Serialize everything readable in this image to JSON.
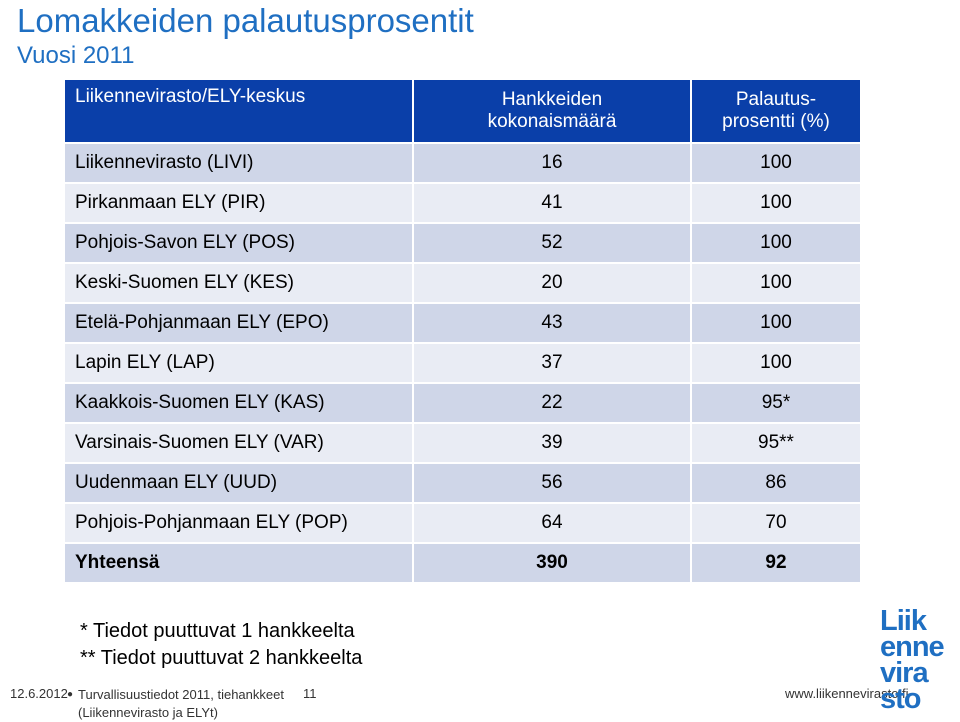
{
  "title": "Lomakkeiden palautusprosentit",
  "subtitle": "Vuosi 2011",
  "table": {
    "headers": {
      "col1": "Liikennevirasto/ELY-keskus",
      "col2_line1": "Hankkeiden",
      "col2_line2": "kokonaismäärä",
      "col3_line1": "Palautus-",
      "col3_line2": "prosentti (%)"
    },
    "rows": [
      {
        "name": "Liikennevirasto (LIVI)",
        "count": "16",
        "pct": "100"
      },
      {
        "name": "Pirkanmaan ELY (PIR)",
        "count": "41",
        "pct": "100"
      },
      {
        "name": "Pohjois-Savon ELY (POS)",
        "count": "52",
        "pct": "100"
      },
      {
        "name": "Keski-Suomen ELY (KES)",
        "count": "20",
        "pct": "100"
      },
      {
        "name": "Etelä-Pohjanmaan ELY (EPO)",
        "count": "43",
        "pct": "100"
      },
      {
        "name": "Lapin ELY (LAP)",
        "count": "37",
        "pct": "100"
      },
      {
        "name": "Kaakkois-Suomen ELY (KAS)",
        "count": "22",
        "pct": "95*"
      },
      {
        "name": "Varsinais-Suomen ELY (VAR)",
        "count": "39",
        "pct": "95**"
      },
      {
        "name": "Uudenmaan ELY (UUD)",
        "count": "56",
        "pct": "86"
      },
      {
        "name": "Pohjois-Pohjanmaan ELY (POP)",
        "count": "64",
        "pct": "70"
      }
    ],
    "total": {
      "name": "Yhteensä",
      "count": "390",
      "pct": "92"
    }
  },
  "notes": {
    "note1": "* Tiedot puuttuvat 1 hankkeelta",
    "note2": "** Tiedot puuttuvat 2 hankkeelta"
  },
  "footer": {
    "date": "12.6.2012",
    "text_line1": "Turvallisuustiedot 2011, tiehankkeet",
    "text_line2": "(Liikennevirasto ja ELYt)",
    "page": "11",
    "url": "www.liikennevirasto.fi"
  },
  "logo": {
    "line1": "Liik",
    "line2": "enne",
    "line3": "vira",
    "line4": "sto"
  },
  "colors": {
    "title": "#1f6fc2",
    "header_bg": "#0a3fa9",
    "row_dark": "#cfd6e8",
    "row_light": "#e9ecf4"
  }
}
